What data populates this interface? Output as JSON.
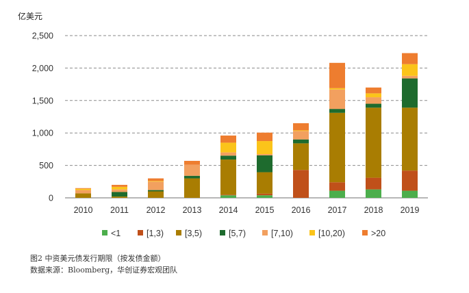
{
  "caption": {
    "title": "图2   中资美元债发行期限（按发债金额）",
    "source": "数据来源：Bloomberg，华创证券宏观团队"
  },
  "chart_data": {
    "type": "bar",
    "stacked": true,
    "unit_label": "亿美元",
    "categories": [
      "2010",
      "2011",
      "2012",
      "2013",
      "2014",
      "2015",
      "2016",
      "2017",
      "2018",
      "2019"
    ],
    "ylim": [
      0,
      2500
    ],
    "yticks": [
      0,
      500,
      1000,
      1500,
      2000,
      2500
    ],
    "ytick_labels": [
      "0",
      "500",
      "1,000",
      "1,500",
      "2,000",
      "2,500"
    ],
    "grid": "horizontal-dashed",
    "legend_position": "bottom",
    "series": [
      {
        "name": "<1",
        "color": "#4cae4c",
        "values": [
          0,
          0,
          0,
          0,
          40,
          40,
          0,
          110,
          130,
          110
        ]
      },
      {
        "name": "[1,3)",
        "color": "#c0501a",
        "values": [
          0,
          0,
          0,
          0,
          10,
          25,
          430,
          130,
          180,
          310
        ]
      },
      {
        "name": "[3,5)",
        "color": "#a97d02",
        "values": [
          70,
          20,
          100,
          300,
          540,
          330,
          410,
          1070,
          1080,
          970
        ]
      },
      {
        "name": "[5,7)",
        "color": "#1e6b2e",
        "values": [
          0,
          70,
          20,
          40,
          60,
          260,
          60,
          60,
          60,
          450
        ]
      },
      {
        "name": "[7,10)",
        "color": "#f2a05f",
        "values": [
          50,
          40,
          130,
          170,
          50,
          20,
          130,
          300,
          100,
          40
        ]
      },
      {
        "name": "[10,20)",
        "color": "#fbc41a",
        "values": [
          20,
          40,
          10,
          0,
          150,
          200,
          10,
          20,
          60,
          180
        ]
      },
      {
        "name": ">20",
        "color": "#ee7d2f",
        "values": [
          10,
          30,
          40,
          60,
          110,
          130,
          110,
          390,
          90,
          170
        ]
      }
    ]
  }
}
